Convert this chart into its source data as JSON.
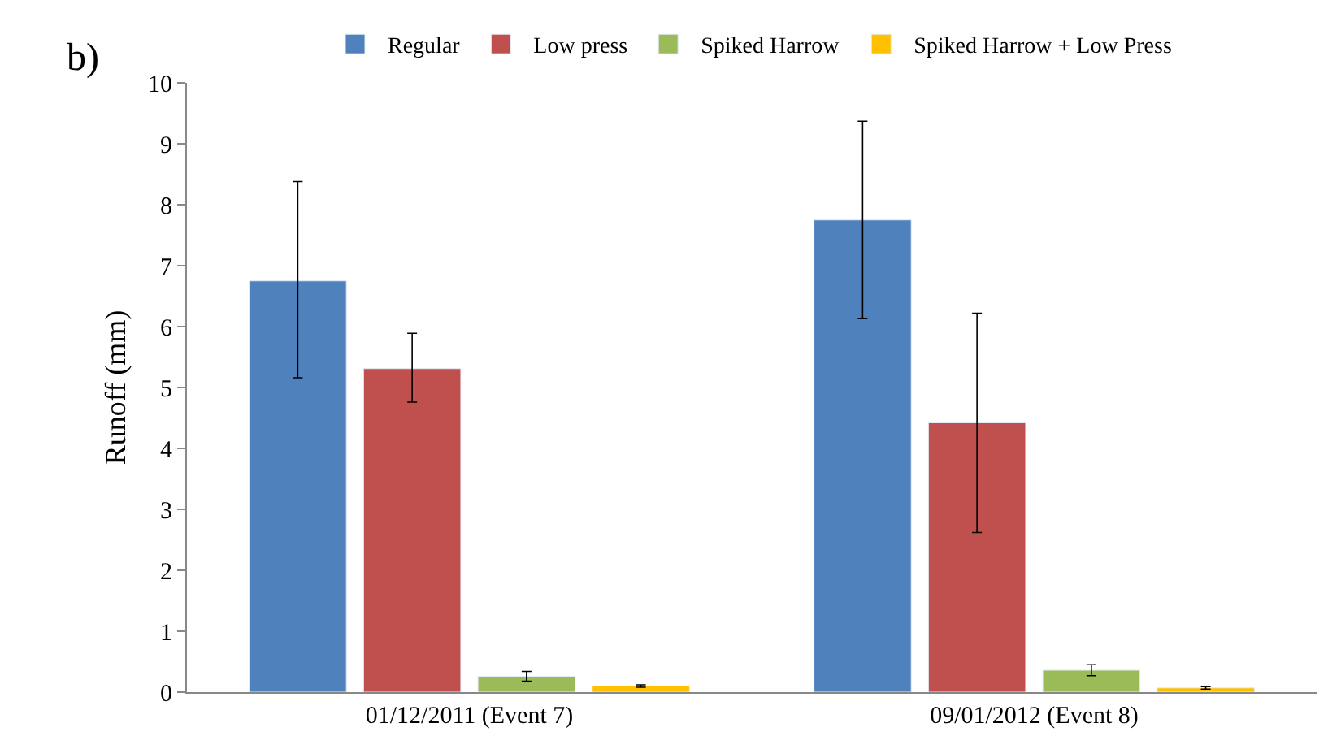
{
  "chart_data": {
    "type": "bar",
    "ylabel": "Runoff (mm)",
    "annotations": [
      "b)"
    ],
    "categories": [
      "01/12/2011 (Event 7)",
      "09/01/2012 (Event 8)"
    ],
    "series": [
      {
        "name": "Regular",
        "color": "#4f81bd",
        "values": [
          6.75,
          7.75
        ],
        "errors": [
          [
            5.16,
            8.38
          ],
          [
            6.13,
            9.37
          ]
        ]
      },
      {
        "name": "Low press",
        "color": "#c0504d",
        "values": [
          5.31,
          4.42
        ],
        "errors": [
          [
            4.76,
            5.89
          ],
          [
            2.62,
            6.22
          ]
        ]
      },
      {
        "name": "Spiked Harrow",
        "color": "#9bbb59",
        "values": [
          0.26,
          0.36
        ],
        "errors": [
          [
            0.18,
            0.34
          ],
          [
            0.27,
            0.45
          ]
        ]
      },
      {
        "name": "Spiked Harrow + Low Press",
        "color": "#ffc000",
        "values": [
          0.1,
          0.07
        ],
        "errors": [
          [
            0.08,
            0.12
          ],
          [
            0.05,
            0.09
          ]
        ]
      }
    ],
    "ylim": [
      0,
      10
    ],
    "yticks": [
      0,
      1,
      2,
      3,
      4,
      5,
      6,
      7,
      8,
      9,
      10
    ],
    "legend": "top"
  }
}
